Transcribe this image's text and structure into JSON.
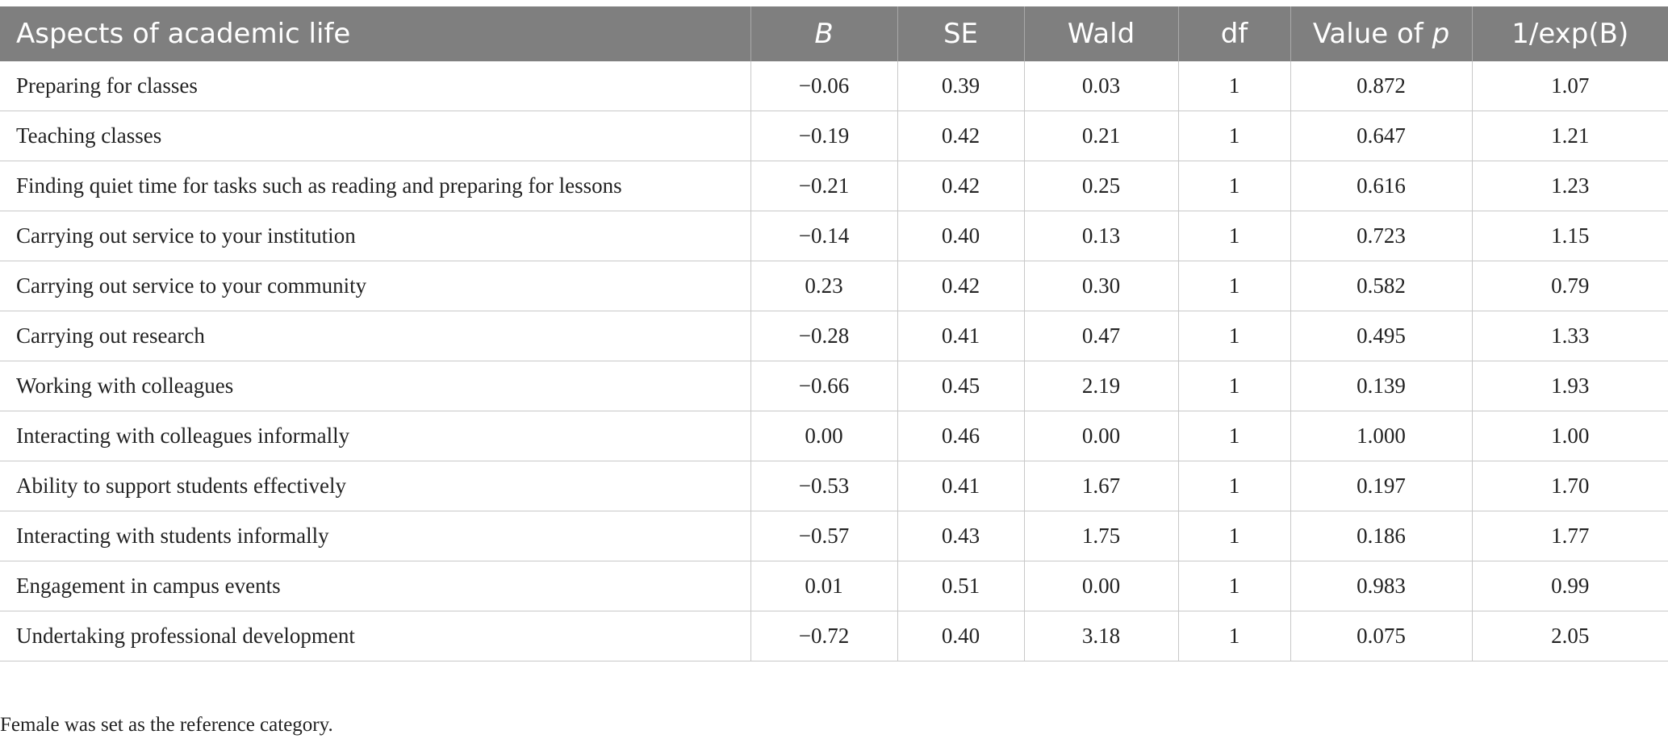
{
  "table": {
    "columns": {
      "aspect": "Aspects of academic life",
      "b": "B",
      "se": "SE",
      "wald": "Wald",
      "df": "df",
      "p_prefix": "Value of ",
      "p_var": "p",
      "inv_exp": "1/exp(B)"
    },
    "rows": [
      {
        "aspect": "Preparing for classes",
        "b": "−0.06",
        "se": "0.39",
        "wald": "0.03",
        "df": "1",
        "p": "0.872",
        "inv_exp": "1.07"
      },
      {
        "aspect": "Teaching classes",
        "b": "−0.19",
        "se": "0.42",
        "wald": "0.21",
        "df": "1",
        "p": "0.647",
        "inv_exp": "1.21"
      },
      {
        "aspect": "Finding quiet time for tasks such as reading and preparing for lessons",
        "b": "−0.21",
        "se": "0.42",
        "wald": "0.25",
        "df": "1",
        "p": "0.616",
        "inv_exp": "1.23"
      },
      {
        "aspect": "Carrying out service to your institution",
        "b": "−0.14",
        "se": "0.40",
        "wald": "0.13",
        "df": "1",
        "p": "0.723",
        "inv_exp": "1.15"
      },
      {
        "aspect": "Carrying out service to your community",
        "b": "0.23",
        "se": "0.42",
        "wald": "0.30",
        "df": "1",
        "p": "0.582",
        "inv_exp": "0.79"
      },
      {
        "aspect": "Carrying out research",
        "b": "−0.28",
        "se": "0.41",
        "wald": "0.47",
        "df": "1",
        "p": "0.495",
        "inv_exp": "1.33"
      },
      {
        "aspect": "Working with colleagues",
        "b": "−0.66",
        "se": "0.45",
        "wald": "2.19",
        "df": "1",
        "p": "0.139",
        "inv_exp": "1.93"
      },
      {
        "aspect": "Interacting with colleagues informally",
        "b": "0.00",
        "se": "0.46",
        "wald": "0.00",
        "df": "1",
        "p": "1.000",
        "inv_exp": "1.00"
      },
      {
        "aspect": "Ability to support students effectively",
        "b": "−0.53",
        "se": "0.41",
        "wald": "1.67",
        "df": "1",
        "p": "0.197",
        "inv_exp": "1.70"
      },
      {
        "aspect": "Interacting with students informally",
        "b": "−0.57",
        "se": "0.43",
        "wald": "1.75",
        "df": "1",
        "p": "0.186",
        "inv_exp": "1.77"
      },
      {
        "aspect": "Engagement in campus events",
        "b": "0.01",
        "se": "0.51",
        "wald": "0.00",
        "df": "1",
        "p": "0.983",
        "inv_exp": "0.99"
      },
      {
        "aspect": "Undertaking professional development",
        "b": "−0.72",
        "se": "0.40",
        "wald": "3.18",
        "df": "1",
        "p": "0.075",
        "inv_exp": "2.05"
      }
    ],
    "note": "Female was set as the reference category."
  }
}
